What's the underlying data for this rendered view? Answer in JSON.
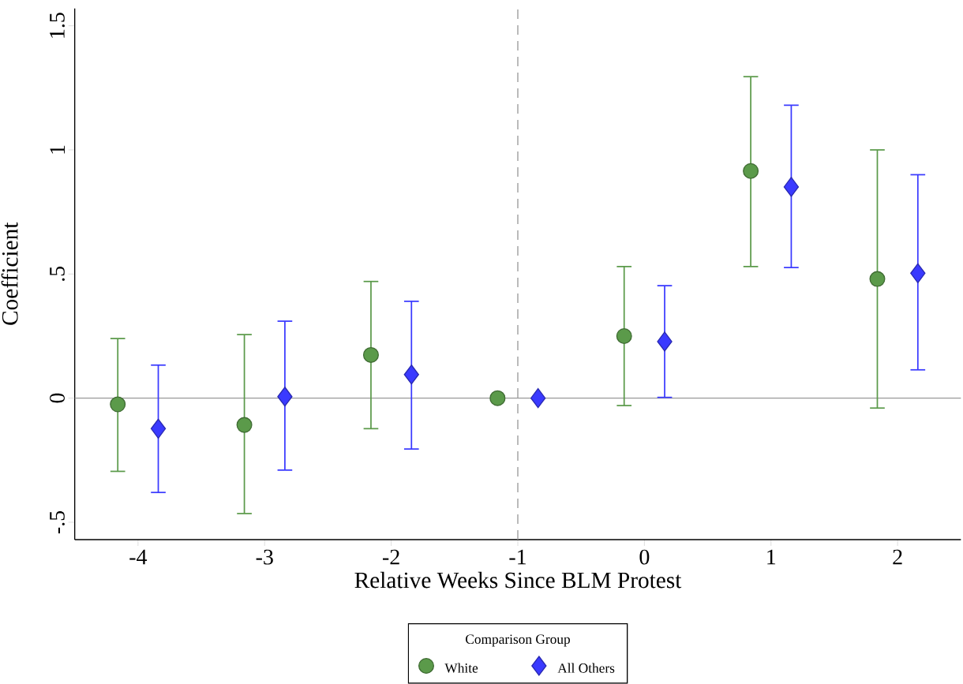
{
  "chart_data": {
    "type": "scatter",
    "xlabel": "Relative Weeks Since BLM Protest",
    "ylabel": "Coefficient",
    "legend_title": "Comparison Group",
    "xlim": [
      -4.5,
      2.5
    ],
    "ylim": [
      -0.57,
      1.57
    ],
    "xticks": [
      -4,
      -3,
      -2,
      -1,
      0,
      1,
      2
    ],
    "yticks": [
      {
        "value": -0.5,
        "label": "-.5"
      },
      {
        "value": 0,
        "label": "0"
      },
      {
        "value": 0.5,
        "label": ".5"
      },
      {
        "value": 1,
        "label": "1"
      },
      {
        "value": 1.5,
        "label": "1.5"
      }
    ],
    "series": [
      {
        "name": "White",
        "color": "#5b9a4a",
        "marker": "circle",
        "x": [
          -4.16,
          -3.16,
          -2.16,
          -1.16,
          -0.16,
          0.84,
          1.84
        ],
        "values": [
          -0.025,
          -0.108,
          0.174,
          0,
          0.25,
          0.915,
          0.48
        ],
        "errors": [
          [
            -0.295,
            0.24
          ],
          [
            -0.465,
            0.256
          ],
          [
            -0.123,
            0.47
          ],
          null,
          [
            -0.03,
            0.53
          ],
          [
            0.53,
            1.295
          ],
          [
            -0.04,
            1.0
          ]
        ]
      },
      {
        "name": "All Others",
        "color": "#3a3aff",
        "marker": "diamond",
        "x": [
          -3.84,
          -2.84,
          -1.84,
          -0.84,
          0.16,
          1.16,
          2.16
        ],
        "values": [
          -0.123,
          0.006,
          0.095,
          0,
          0.228,
          0.851,
          0.503
        ],
        "errors": [
          [
            -0.38,
            0.133
          ],
          [
            -0.29,
            0.31
          ],
          [
            -0.205,
            0.39
          ],
          null,
          [
            0.003,
            0.453
          ],
          [
            0.526,
            1.18
          ],
          [
            0.114,
            0.9
          ]
        ]
      }
    ],
    "ref_lines": [
      {
        "axis": "x",
        "value": -1,
        "color": "#999999",
        "line_style": "dashed"
      },
      {
        "axis": "y",
        "value": 0,
        "color": "#999999",
        "line_style": "solid"
      }
    ],
    "grid": false,
    "legend": "bottom"
  }
}
